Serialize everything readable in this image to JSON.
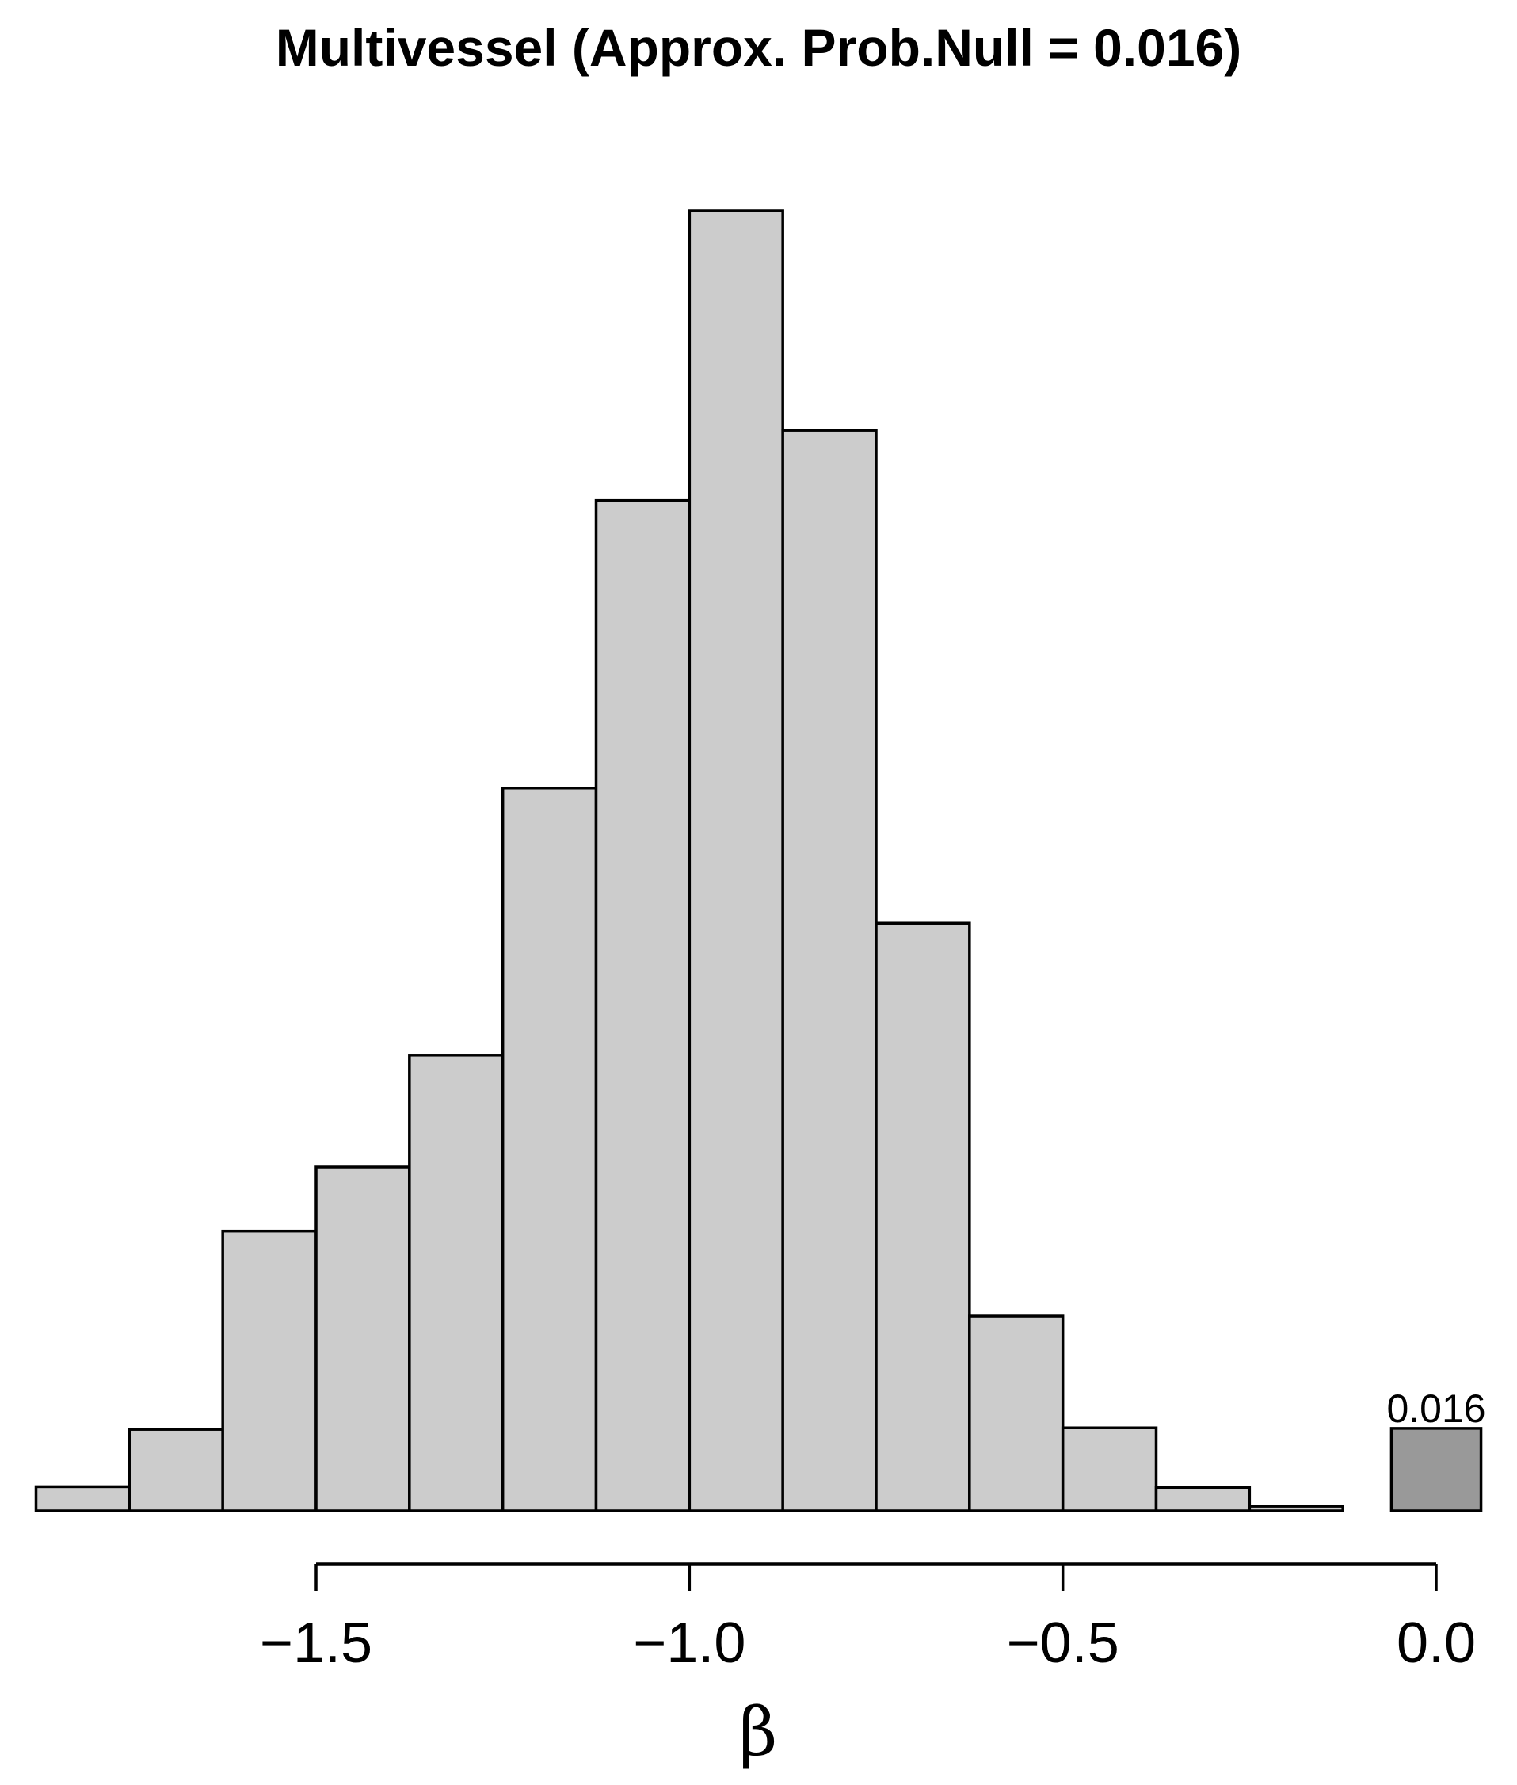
{
  "chart_data": {
    "type": "bar",
    "title": "Multivessel (Approx. Prob.Null = 0.016)",
    "xlabel": "β",
    "ylabel": "",
    "bins": [
      {
        "x0": -1.875,
        "x1": -1.75,
        "value": 0.0047
      },
      {
        "x0": -1.75,
        "x1": -1.625,
        "value": 0.0158
      },
      {
        "x0": -1.625,
        "x1": -1.5,
        "value": 0.0543
      },
      {
        "x0": -1.5,
        "x1": -1.375,
        "value": 0.0667
      },
      {
        "x0": -1.375,
        "x1": -1.25,
        "value": 0.0884
      },
      {
        "x0": -1.25,
        "x1": -1.125,
        "value": 0.1402
      },
      {
        "x0": -1.125,
        "x1": -1.0,
        "value": 0.196
      },
      {
        "x0": -1.0,
        "x1": -0.875,
        "value": 0.2522
      },
      {
        "x0": -0.875,
        "x1": -0.75,
        "value": 0.2096
      },
      {
        "x0": -0.75,
        "x1": -0.625,
        "value": 0.114
      },
      {
        "x0": -0.625,
        "x1": -0.5,
        "value": 0.0378
      },
      {
        "x0": -0.5,
        "x1": -0.375,
        "value": 0.0161
      },
      {
        "x0": -0.375,
        "x1": -0.25,
        "value": 0.0045
      },
      {
        "x0": -0.25,
        "x1": -0.125,
        "value": 0.0009
      }
    ],
    "null_bar": {
      "x0": -0.06,
      "x1": 0.06,
      "value": 0.016,
      "label": "0.016"
    },
    "xticks": [
      -1.5,
      -1.0,
      -0.5,
      0.0
    ],
    "xtick_labels": [
      "−1.5",
      "−1.0",
      "−0.5",
      "0.0"
    ],
    "xlim": [
      -1.875,
      0.06
    ],
    "ylim": [
      0,
      0.2522
    ],
    "colors": {
      "bars": "#cccccc",
      "null_bar": "#999999",
      "outline": "#000000"
    },
    "grid": false,
    "legend": "none"
  }
}
